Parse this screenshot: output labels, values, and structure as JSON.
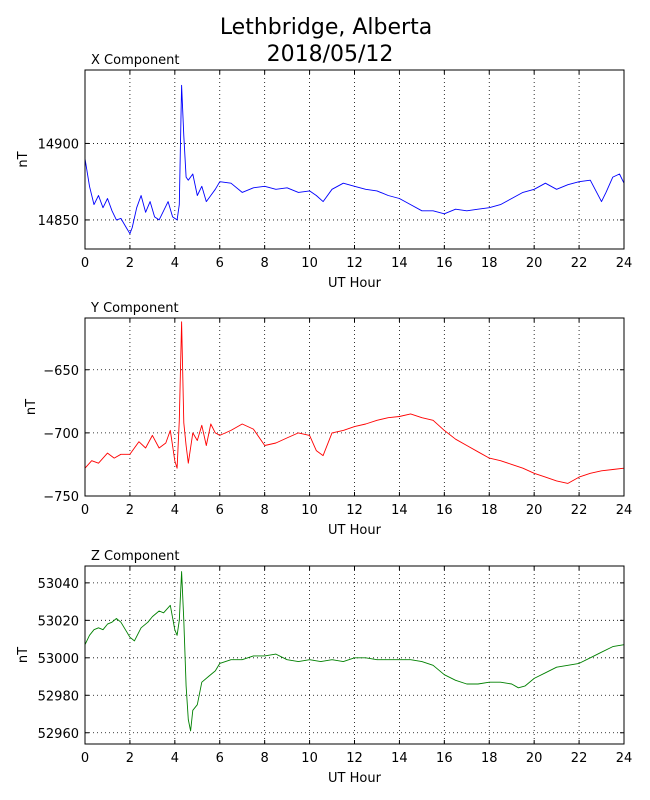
{
  "title": "Lethbridge, Alberta",
  "subtitle": "2018/05/12",
  "chart_data": [
    {
      "type": "line",
      "title": "X Component",
      "xlabel": "UT Hour",
      "ylabel": "nT",
      "xlim": [
        0,
        24
      ],
      "ylim": [
        14831,
        14948
      ],
      "xticks": [
        0,
        2,
        4,
        6,
        8,
        10,
        12,
        14,
        16,
        18,
        20,
        22,
        24
      ],
      "yticks": [
        14850,
        14900
      ],
      "grid": true,
      "series": [
        {
          "color": "#0000ff",
          "x": [
            0,
            0.2,
            0.4,
            0.6,
            0.8,
            1.0,
            1.2,
            1.4,
            1.6,
            1.8,
            2.0,
            2.1,
            2.3,
            2.5,
            2.7,
            2.9,
            3.1,
            3.3,
            3.5,
            3.7,
            3.9,
            4.1,
            4.2,
            4.3,
            4.4,
            4.5,
            4.6,
            4.8,
            5.0,
            5.2,
            5.4,
            5.6,
            5.8,
            6.0,
            6.5,
            7.0,
            7.5,
            8.0,
            8.5,
            9.0,
            9.5,
            10.0,
            10.3,
            10.6,
            11.0,
            11.5,
            12.0,
            12.5,
            13.0,
            13.5,
            14.0,
            14.5,
            15.0,
            15.5,
            16.0,
            16.5,
            17.0,
            17.5,
            18.0,
            18.5,
            19.0,
            19.5,
            20.0,
            20.5,
            21.0,
            21.5,
            22.0,
            22.5,
            23.0,
            23.2,
            23.5,
            23.8,
            24.0
          ],
          "y": [
            14890,
            14872,
            14860,
            14866,
            14858,
            14864,
            14856,
            14850,
            14851,
            14846,
            14841,
            14845,
            14858,
            14866,
            14855,
            14862,
            14852,
            14850,
            14856,
            14862,
            14852,
            14850,
            14860,
            14938,
            14905,
            14878,
            14876,
            14880,
            14866,
            14872,
            14862,
            14866,
            14870,
            14875,
            14874,
            14868,
            14871,
            14872,
            14870,
            14871,
            14868,
            14869,
            14866,
            14862,
            14870,
            14874,
            14872,
            14870,
            14869,
            14866,
            14864,
            14860,
            14856,
            14856,
            14854,
            14857,
            14856,
            14857,
            14858,
            14860,
            14864,
            14868,
            14870,
            14874,
            14870,
            14873,
            14875,
            14876,
            14862,
            14868,
            14878,
            14880,
            14874
          ]
        }
      ]
    },
    {
      "type": "line",
      "title": "Y Component",
      "xlabel": "UT Hour",
      "ylabel": "nT",
      "xlim": [
        0,
        24
      ],
      "ylim": [
        -750,
        -609
      ],
      "xticks": [
        0,
        2,
        4,
        6,
        8,
        10,
        12,
        14,
        16,
        18,
        20,
        22,
        24
      ],
      "yticks": [
        -650,
        -700,
        -750
      ],
      "grid": true,
      "series": [
        {
          "color": "#ff0000",
          "x": [
            0,
            0.3,
            0.6,
            1.0,
            1.3,
            1.6,
            2.0,
            2.4,
            2.7,
            3.0,
            3.3,
            3.6,
            3.8,
            4.0,
            4.1,
            4.2,
            4.3,
            4.4,
            4.5,
            4.6,
            4.8,
            5.0,
            5.2,
            5.4,
            5.6,
            5.8,
            6.0,
            6.5,
            7.0,
            7.5,
            8.0,
            8.5,
            9.0,
            9.5,
            10.0,
            10.3,
            10.6,
            11.0,
            11.5,
            12.0,
            12.5,
            13.0,
            13.5,
            14.0,
            14.5,
            15.0,
            15.5,
            16.0,
            16.5,
            17.0,
            17.5,
            18.0,
            18.5,
            19.0,
            19.5,
            20.0,
            20.5,
            21.0,
            21.5,
            22.0,
            22.5,
            23.0,
            23.5,
            24.0
          ],
          "y": [
            -728,
            -722,
            -724,
            -716,
            -720,
            -717,
            -717,
            -707,
            -712,
            -702,
            -712,
            -708,
            -698,
            -722,
            -728,
            -690,
            -612,
            -692,
            -710,
            -724,
            -700,
            -706,
            -694,
            -710,
            -693,
            -700,
            -702,
            -698,
            -693,
            -697,
            -710,
            -708,
            -704,
            -700,
            -702,
            -714,
            -718,
            -700,
            -698,
            -695,
            -693,
            -690,
            -688,
            -687,
            -685,
            -688,
            -690,
            -698,
            -705,
            -710,
            -715,
            -720,
            -722,
            -725,
            -728,
            -732,
            -735,
            -738,
            -740,
            -735,
            -732,
            -730,
            -729,
            -728
          ]
        }
      ]
    },
    {
      "type": "line",
      "title": "Z Component",
      "xlabel": "UT Hour",
      "ylabel": "nT",
      "xlim": [
        0,
        24
      ],
      "ylim": [
        52954,
        53049
      ],
      "xticks": [
        0,
        2,
        4,
        6,
        8,
        10,
        12,
        14,
        16,
        18,
        20,
        22,
        24
      ],
      "yticks": [
        53040,
        53020,
        53000,
        52980,
        52960
      ],
      "grid": true,
      "series": [
        {
          "color": "#008000",
          "x": [
            0,
            0.2,
            0.4,
            0.6,
            0.8,
            1.0,
            1.2,
            1.4,
            1.6,
            1.8,
            2.0,
            2.2,
            2.5,
            2.8,
            3.0,
            3.3,
            3.5,
            3.8,
            4.0,
            4.1,
            4.2,
            4.3,
            4.4,
            4.5,
            4.6,
            4.7,
            4.8,
            5.0,
            5.2,
            5.5,
            5.8,
            6.0,
            6.5,
            7.0,
            7.5,
            8.0,
            8.5,
            9.0,
            9.5,
            10.0,
            10.5,
            11.0,
            11.5,
            12.0,
            12.5,
            13.0,
            13.5,
            14.0,
            14.5,
            15.0,
            15.5,
            16.0,
            16.5,
            17.0,
            17.5,
            18.0,
            18.5,
            19.0,
            19.3,
            19.6,
            20.0,
            20.5,
            21.0,
            21.5,
            22.0,
            22.5,
            23.0,
            23.5,
            24.0
          ],
          "y": [
            53007,
            53012,
            53015,
            53016,
            53015,
            53018,
            53019,
            53021,
            53019,
            53015,
            53011,
            53009,
            53016,
            53019,
            53022,
            53025,
            53024,
            53028,
            53015,
            53012,
            53020,
            53046,
            53020,
            52985,
            52967,
            52961,
            52972,
            52975,
            52987,
            52990,
            52993,
            52997,
            52999,
            52999,
            53001,
            53001,
            53002,
            52999,
            52998,
            52999,
            52998,
            52999,
            52998,
            53000,
            53000,
            52999,
            52999,
            52999,
            52999,
            52998,
            52996,
            52991,
            52988,
            52986,
            52986,
            52987,
            52987,
            52986,
            52984,
            52985,
            52989,
            52992,
            52995,
            52996,
            52997,
            53000,
            53003,
            53006,
            53007
          ]
        }
      ]
    }
  ]
}
